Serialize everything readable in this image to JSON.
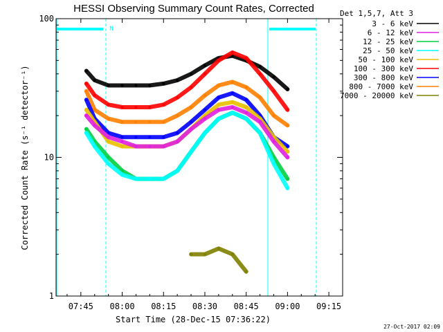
{
  "chart_data": {
    "type": "line",
    "title": "HESSI Observing Summary Count Rates, Corrected",
    "xlabel": "Start Time (28-Dec-15 07:36:22)",
    "ylabel": "Corrected Count Rate (s⁻¹ detector⁻¹)",
    "yscale": "log",
    "ylim": [
      1,
      100
    ],
    "xlim": [
      "07:36",
      "09:20"
    ],
    "x_ticks": [
      "07:45",
      "08:00",
      "08:15",
      "08:30",
      "08:45",
      "09:00",
      "09:15"
    ],
    "y_ticks": [
      "1",
      "10",
      "100"
    ],
    "grid": false,
    "legend_title": "Det 1,5,7, Att 3",
    "legend_position": "right",
    "attenuator_flag": "N",
    "attenuator_color": "#00ffff",
    "footer_date": "27-Oct-2017 02:09",
    "x": [
      "07:47",
      "07:50",
      "07:55",
      "08:00",
      "08:05",
      "08:10",
      "08:15",
      "08:20",
      "08:25",
      "08:30",
      "08:35",
      "08:40",
      "08:45",
      "08:50",
      "08:55",
      "09:00"
    ],
    "series": [
      {
        "name": "3 - 6 keV",
        "color": "#000000",
        "values": [
          42,
          36,
          33,
          33,
          33,
          33,
          34,
          36,
          40,
          46,
          52,
          54,
          50,
          45,
          38,
          31
        ]
      },
      {
        "name": "6 - 12 keV",
        "color": "#e020e0",
        "values": [
          20,
          17,
          14,
          13,
          12,
          12,
          12,
          13,
          16,
          19,
          22,
          23,
          21,
          18,
          13,
          10
        ]
      },
      {
        "name": "12 - 25 keV",
        "color": "#00d040",
        "values": [
          16,
          13,
          10,
          8,
          7,
          7,
          7,
          8,
          11,
          15,
          19,
          21,
          19,
          15,
          10,
          7
        ]
      },
      {
        "name": "25 - 50 keV",
        "color": "#00ffff",
        "values": [
          15,
          12,
          9,
          7.5,
          7,
          7,
          7,
          8,
          11,
          15,
          19,
          21,
          19,
          15,
          9,
          6
        ]
      },
      {
        "name": "50 - 100 keV",
        "color": "#e8c000",
        "values": [
          22,
          18,
          13,
          12,
          12,
          12,
          12,
          13,
          16,
          20,
          24,
          25,
          23,
          19,
          14,
          11
        ]
      },
      {
        "name": "100 - 300 keV",
        "color": "#ff0000",
        "values": [
          34,
          28,
          24,
          23,
          23,
          23,
          24,
          27,
          32,
          40,
          50,
          57,
          52,
          40,
          30,
          22
        ]
      },
      {
        "name": "300 - 800 keV",
        "color": "#0000ff",
        "values": [
          26,
          19,
          15,
          14,
          14,
          14,
          14,
          15,
          18,
          22,
          27,
          29,
          26,
          20,
          14,
          12
        ]
      },
      {
        "name": "800 - 7000 keV",
        "color": "#ff8000",
        "values": [
          30,
          22,
          19,
          18,
          18,
          18,
          18,
          20,
          23,
          28,
          33,
          35,
          32,
          27,
          20,
          17
        ]
      },
      {
        "name": "7000 - 20000 keV",
        "color": "#808000",
        "values": [
          null,
          null,
          null,
          null,
          null,
          null,
          null,
          null,
          2,
          2,
          2.2,
          2,
          1.5,
          null,
          null,
          null
        ]
      }
    ]
  }
}
